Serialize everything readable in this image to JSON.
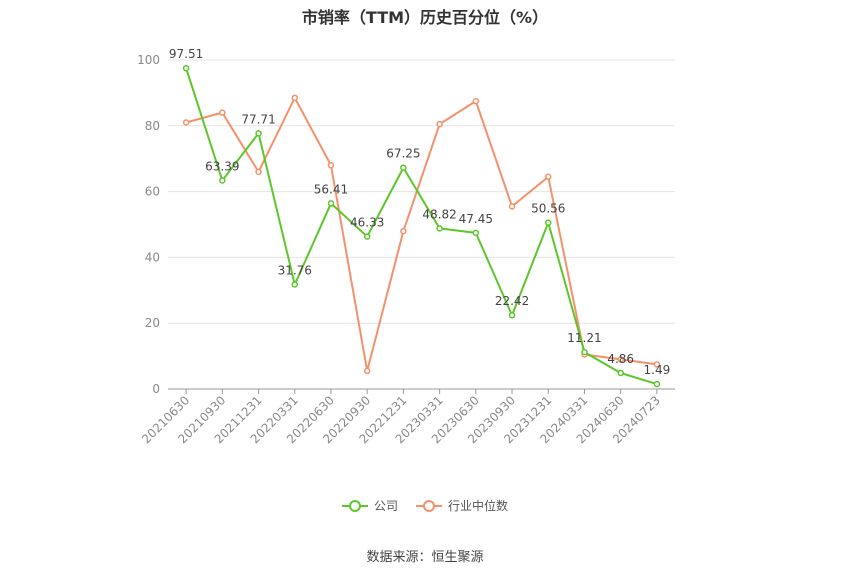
{
  "chart_data": {
    "type": "line",
    "title": "市销率（TTM）历史百分位（%）",
    "categories": [
      "20210630",
      "20210930",
      "20211231",
      "20220331",
      "20220630",
      "20220930",
      "20221231",
      "20230331",
      "20230630",
      "20230930",
      "20231231",
      "20240331",
      "20240630",
      "20240723"
    ],
    "series": [
      {
        "name": "公司",
        "color": "#5cc72a",
        "values": [
          97.51,
          63.39,
          77.71,
          31.76,
          56.41,
          46.33,
          67.25,
          48.82,
          47.45,
          22.42,
          50.56,
          11.21,
          4.86,
          1.49
        ],
        "labels": [
          "97.51",
          "63.39",
          "77.71",
          "31.76",
          "56.41",
          "46.33",
          "67.25",
          "48.82",
          "47.45",
          "22.42",
          "50.56",
          "11.21",
          "4.86",
          "1.49"
        ]
      },
      {
        "name": "行业中位数",
        "color": "#f4916a",
        "values": [
          81,
          84,
          66,
          88.5,
          68,
          5.5,
          48,
          80.5,
          87.5,
          55.5,
          64.5,
          10.5,
          9,
          7.5
        ]
      }
    ],
    "ylim": [
      0,
      100
    ],
    "yticks": [
      0,
      20,
      40,
      60,
      80,
      100
    ],
    "grid": true,
    "legend_position": "bottom"
  },
  "source": "数据来源：恒生聚源"
}
